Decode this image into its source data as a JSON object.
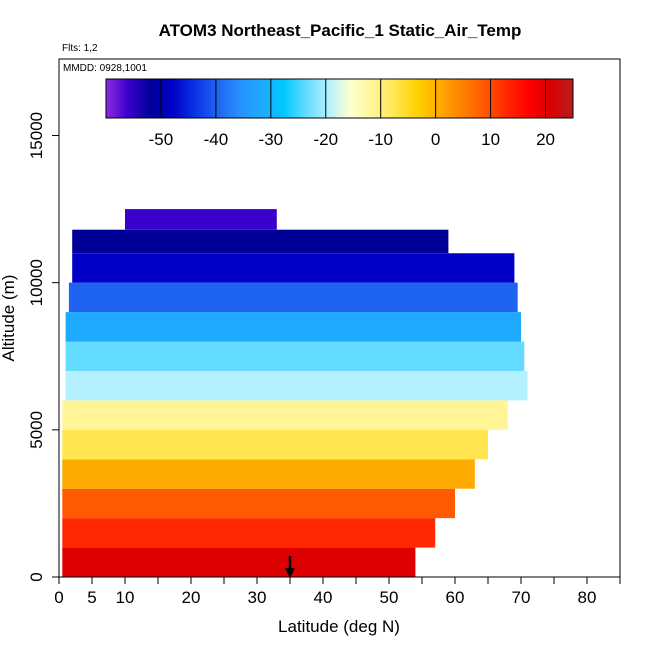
{
  "chart_data": {
    "type": "heatmap",
    "title": "ATOM3 Northeast_Pacific_1 Static_Air_Temp",
    "flights_label": "Flts: 1,2",
    "dates_label": "MMDD: 0928,1001",
    "xlabel": "Latitude (deg N)",
    "ylabel": "Altitude (m)",
    "xlim": [
      0,
      85
    ],
    "ylim": [
      0,
      17600
    ],
    "x_ticks": [
      0,
      5,
      10,
      20,
      30,
      40,
      50,
      60,
      70,
      80
    ],
    "x_minor_ticks": [
      15,
      25,
      35,
      45,
      55,
      65,
      75,
      85
    ],
    "y_ticks": [
      0,
      5000,
      10000,
      15000
    ],
    "colorbar": {
      "range": [
        -60,
        25
      ],
      "ticks": [
        -50,
        -40,
        -30,
        -20,
        -10,
        0,
        10,
        20
      ],
      "colors": [
        "#8b2be2",
        "#3a00cc",
        "#000099",
        "#0000c8",
        "#0a32e6",
        "#1e64f0",
        "#2890ff",
        "#1eaaff",
        "#00c8ff",
        "#64dcff",
        "#b4f0ff",
        "#ffffd2",
        "#fff596",
        "#ffe650",
        "#ffd200",
        "#ffaa00",
        "#ff8200",
        "#ff5a00",
        "#ff2800",
        "#ff0000",
        "#dc0000",
        "#b41e1e"
      ]
    },
    "marker_arrow_x": 35,
    "series": [
      {
        "values": [
          {
            "lat_min": 0.5,
            "lat_max": 54,
            "alt_min": 0,
            "alt_max": 1000,
            "temp": 18
          },
          {
            "lat_min": 0.5,
            "lat_max": 57,
            "alt_min": 1000,
            "alt_max": 2000,
            "temp": 12
          },
          {
            "lat_min": 0.5,
            "lat_max": 60,
            "alt_min": 2000,
            "alt_max": 3000,
            "temp": 6
          },
          {
            "lat_min": 0.5,
            "lat_max": 63,
            "alt_min": 3000,
            "alt_max": 4000,
            "temp": 0
          },
          {
            "lat_min": 0.5,
            "lat_max": 65,
            "alt_min": 4000,
            "alt_max": 5000,
            "temp": -6
          },
          {
            "lat_min": 0.5,
            "lat_max": 68,
            "alt_min": 5000,
            "alt_max": 6000,
            "temp": -13
          },
          {
            "lat_min": 1,
            "lat_max": 71,
            "alt_min": 6000,
            "alt_max": 7000,
            "temp": -19
          },
          {
            "lat_min": 1,
            "lat_max": 70.5,
            "alt_min": 7000,
            "alt_max": 8000,
            "temp": -25
          },
          {
            "lat_min": 1,
            "lat_max": 70,
            "alt_min": 8000,
            "alt_max": 9000,
            "temp": -31
          },
          {
            "lat_min": 1.5,
            "lat_max": 69.5,
            "alt_min": 9000,
            "alt_max": 10000,
            "temp": -38
          },
          {
            "lat_min": 2,
            "lat_max": 69,
            "alt_min": 10000,
            "alt_max": 11000,
            "temp": -45
          },
          {
            "lat_min": 2,
            "lat_max": 59,
            "alt_min": 11000,
            "alt_max": 11800,
            "temp": -50
          },
          {
            "lat_min": 10,
            "lat_max": 33,
            "alt_min": 11800,
            "alt_max": 12500,
            "temp": -53
          }
        ]
      }
    ]
  }
}
